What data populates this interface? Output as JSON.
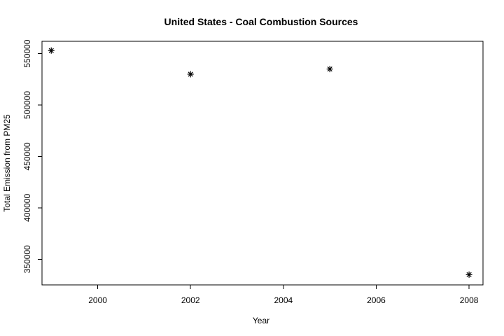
{
  "chart_data": {
    "type": "scatter",
    "title": "United States - Coal Combustion Sources",
    "xlabel": "Year",
    "ylabel": "Total Emission from PM25",
    "x": [
      1999,
      2002,
      2005,
      2008
    ],
    "y": [
      553000,
      530000,
      535000,
      335000
    ],
    "xlim": [
      1998.8,
      2008.3
    ],
    "ylim": [
      325000,
      562000
    ],
    "xticks": [
      2000,
      2002,
      2004,
      2006,
      2008
    ],
    "yticks": [
      350000,
      400000,
      450000,
      500000,
      550000
    ],
    "xtick_labels": [
      "2000",
      "2002",
      "2004",
      "2006",
      "2008"
    ],
    "ytick_labels": [
      "350000",
      "400000",
      "450000",
      "500000",
      "550000"
    ],
    "marker": "asterisk",
    "grid": false,
    "colors": {
      "point": "#000000",
      "axis": "#000000",
      "background": "#ffffff"
    }
  }
}
